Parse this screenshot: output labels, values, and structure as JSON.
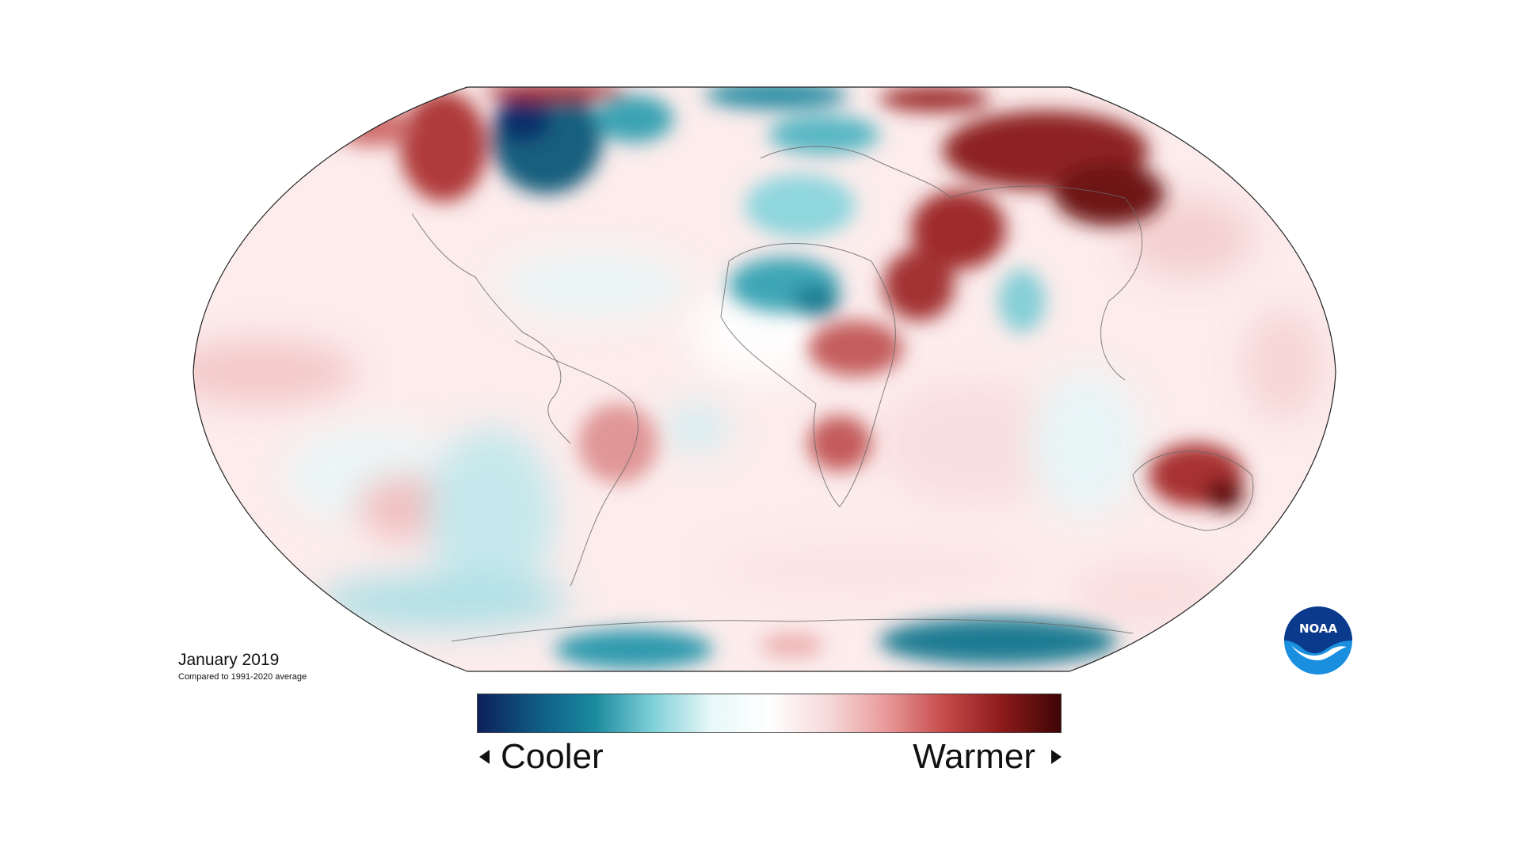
{
  "caption": {
    "title": "January 2019",
    "subtitle": "Compared to 1991-2020 average"
  },
  "colorbar": {
    "left_label": "Cooler",
    "right_label": "Warmer",
    "colors": [
      "#0d1f5c",
      "#0f5a85",
      "#1a8a9e",
      "#7fd0d8",
      "#e8f8f8",
      "#ffffff",
      "#f6dada",
      "#e89a9a",
      "#c64a4a",
      "#8c1a1a",
      "#3e0505"
    ]
  },
  "logo": {
    "text": "NOAA",
    "icon": "noaa-logo-icon",
    "colors": [
      "#0b3a8c",
      "#1a8fe0",
      "#ffffff"
    ]
  },
  "map": {
    "projection": "robinson",
    "ocean_base_color": "#fbe9e9",
    "warm_color": "#8c1a1a",
    "cool_color": "#0f5a85"
  }
}
